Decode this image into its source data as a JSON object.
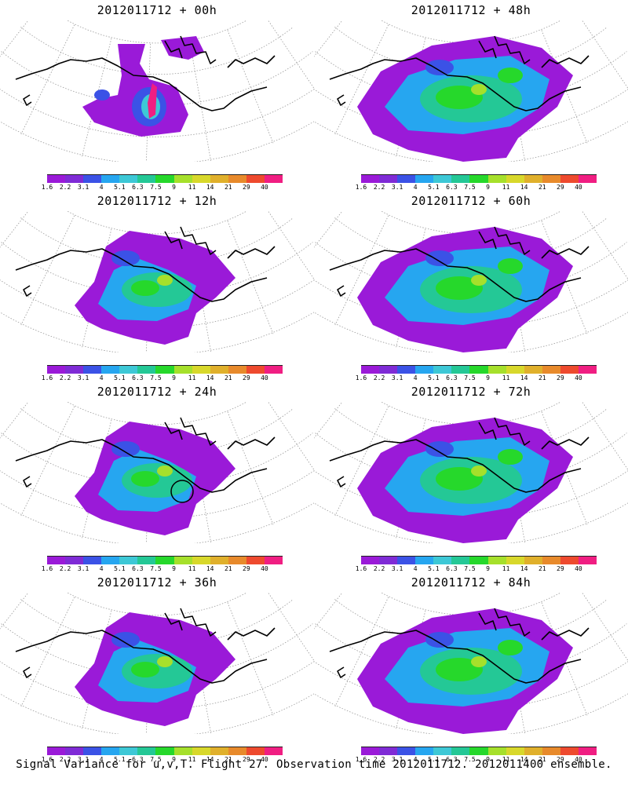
{
  "colorbar": {
    "colors": [
      "#9a1ad8",
      "#7f2bd6",
      "#3b52e6",
      "#26a6f0",
      "#3dc8d6",
      "#24c896",
      "#26d82b",
      "#a6e02b",
      "#d8d82b",
      "#e0b02b",
      "#e88a2b",
      "#ee4a2e",
      "#f01e82"
    ],
    "labels": [
      "1.6",
      "2.2",
      "3.1",
      "4",
      "5.1",
      "6.3",
      "7.5",
      "9",
      "11",
      "14",
      "21",
      "29",
      "40"
    ]
  },
  "panels": [
    {
      "title": "2012011712 + 00h",
      "level": 0
    },
    {
      "title": "2012011712 + 48h",
      "level": 2
    },
    {
      "title": "2012011712 + 12h",
      "level": 1
    },
    {
      "title": "2012011712 + 60h",
      "level": 2
    },
    {
      "title": "2012011712 + 24h",
      "level": 1
    },
    {
      "title": "2012011712 + 72h",
      "level": 2
    },
    {
      "title": "2012011712 + 36h",
      "level": 1
    },
    {
      "title": "2012011712 + 84h",
      "level": 2
    }
  ],
  "caption": "Signal Variance for u,v,T. Flight 27. Observation time 2012011712. 2012011400 ensemble."
}
